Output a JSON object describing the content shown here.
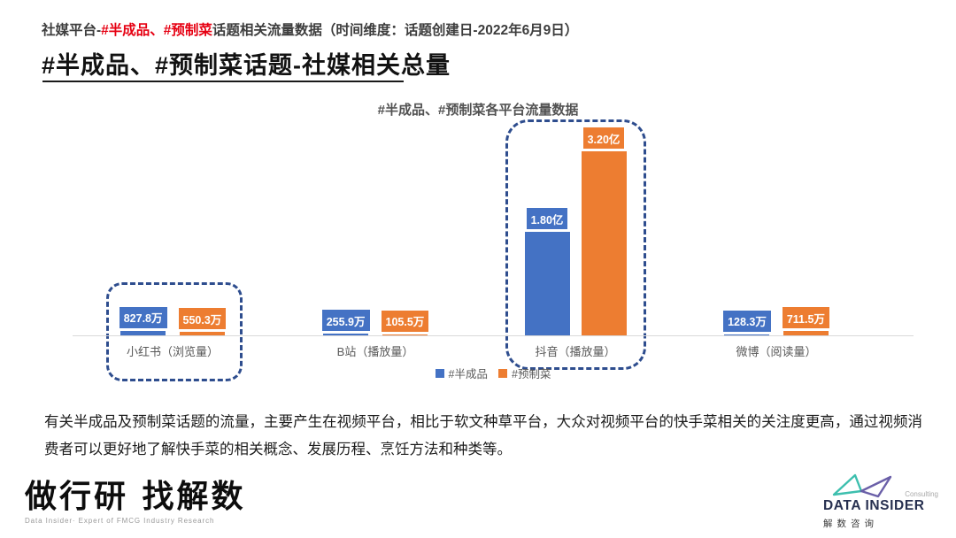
{
  "header": {
    "prefix": "社媒平台-",
    "highlight": "#半成品、#预制菜",
    "suffix": "话题相关流量数据（时间维度：话题创建日-2022年6月9日）"
  },
  "title": "#半成品、#预制菜话题-社媒相关总量",
  "chart_data": {
    "type": "bar",
    "title": "#半成品、#预制菜各平台流量数据",
    "categories": [
      "小红书（浏览量）",
      "B站（播放量）",
      "抖音（播放量）",
      "微博（阅读量）"
    ],
    "series": [
      {
        "name": "#半成品",
        "color": "#4472C4",
        "values_wan": [
          827.8,
          255.9,
          18000,
          128.3
        ],
        "labels": [
          "827.8万",
          "255.9万",
          "1.80亿",
          "128.3万"
        ]
      },
      {
        "name": "#预制菜",
        "color": "#ED7D31",
        "values_wan": [
          550.3,
          105.5,
          32000,
          711.5
        ],
        "labels": [
          "550.3万",
          "105.5万",
          "3.20亿",
          "711.5万"
        ]
      }
    ],
    "y_axis": {
      "min_wan": 0,
      "max_wan": 32000,
      "gridlines": false,
      "axis_labels_visible": false
    },
    "legend": {
      "position": "bottom",
      "entries": [
        "#半成品",
        "#预制菜"
      ]
    },
    "highlighted_categories": [
      "小红书（浏览量）",
      "抖音（播放量）"
    ],
    "highlight_color": "#2e4d8e"
  },
  "body_text": "有关半成品及预制菜话题的流量，主要产生在视频平台，相比于软文种草平台，大众对视频平台的快手菜相关的关注度更高，通过视频消费者可以更好地了解快手菜的相关概念、发展历程、烹饪方法和种类等。",
  "footer": {
    "left_logo": {
      "title": "做行研 找解数",
      "subtitle": "Data Insider· Expert of FMCG Industry Research"
    },
    "right_logo": {
      "consulting": "Consulting",
      "name": "DATA INSIDER",
      "cn": "解数咨询"
    }
  },
  "colors": {
    "series_1": "#4472C4",
    "series_2": "#ED7D31",
    "header_highlight": "#e60012",
    "dashed_highlight": "#2e4d8e",
    "axis_line": "#d9d9d9"
  }
}
